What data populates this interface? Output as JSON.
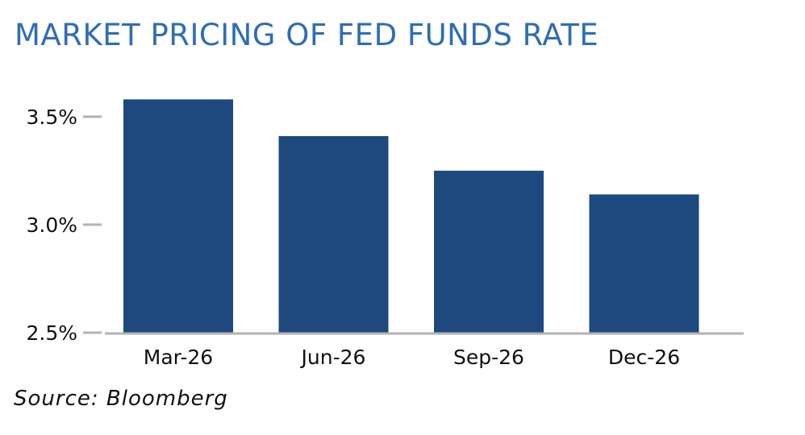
{
  "title": "MARKET PRICING OF FED FUNDS RATE",
  "source": "Source: Bloomberg",
  "colors": {
    "title": "#2f6db5",
    "bar": "#1e497f",
    "axis": "#b3b3b3"
  },
  "chart_data": {
    "type": "bar",
    "title": "MARKET PRICING OF FED FUNDS RATE",
    "xlabel": "",
    "ylabel": "",
    "categories": [
      "Mar-26",
      "Jun-26",
      "Sep-26",
      "Dec-26"
    ],
    "values": [
      3.58,
      3.41,
      3.25,
      3.14
    ],
    "ylim": [
      2.5,
      3.6
    ],
    "yticks": [
      2.5,
      3.0,
      3.5
    ],
    "ytick_labels": [
      "2.5%",
      "3.0%",
      "3.5%"
    ],
    "grid": false,
    "legend": "none"
  }
}
